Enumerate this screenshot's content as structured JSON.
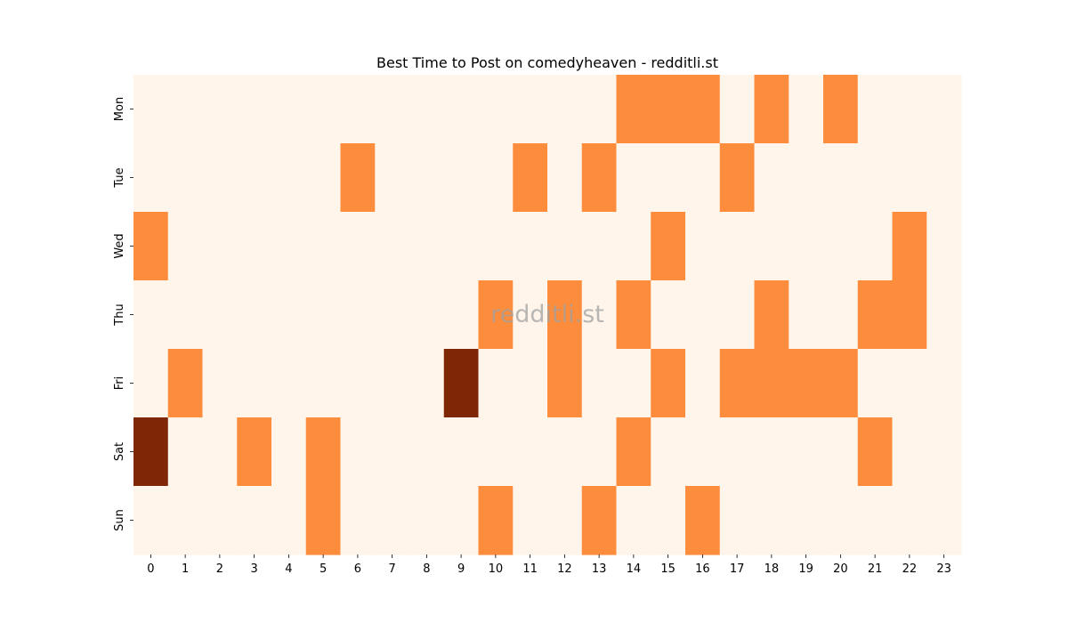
{
  "chart_data": {
    "type": "heatmap",
    "title": "Best Time to Post on comedyheaven - redditli.st",
    "xlabel": "",
    "ylabel": "",
    "x_categories": [
      "0",
      "1",
      "2",
      "3",
      "4",
      "5",
      "6",
      "7",
      "8",
      "9",
      "10",
      "11",
      "12",
      "13",
      "14",
      "15",
      "16",
      "17",
      "18",
      "19",
      "20",
      "21",
      "22",
      "23"
    ],
    "y_categories": [
      "Mon",
      "Tue",
      "Wed",
      "Thu",
      "Fri",
      "Sat",
      "Sun"
    ],
    "values": [
      [
        0,
        0,
        0,
        0,
        0,
        0,
        0,
        0,
        0,
        0,
        0,
        0,
        0,
        0,
        1,
        1,
        1,
        0,
        1,
        0,
        1,
        0,
        0,
        0
      ],
      [
        0,
        0,
        0,
        0,
        0,
        0,
        1,
        0,
        0,
        0,
        0,
        1,
        0,
        1,
        0,
        0,
        0,
        1,
        0,
        0,
        0,
        0,
        0,
        0
      ],
      [
        1,
        0,
        0,
        0,
        0,
        0,
        0,
        0,
        0,
        0,
        0,
        0,
        0,
        0,
        0,
        1,
        0,
        0,
        0,
        0,
        0,
        0,
        1,
        0
      ],
      [
        0,
        0,
        0,
        0,
        0,
        0,
        0,
        0,
        0,
        0,
        1,
        0,
        1,
        0,
        1,
        0,
        0,
        0,
        1,
        0,
        0,
        1,
        1,
        0
      ],
      [
        0,
        1,
        0,
        0,
        0,
        0,
        0,
        0,
        0,
        2,
        0,
        0,
        1,
        0,
        0,
        1,
        0,
        1,
        1,
        1,
        1,
        0,
        0,
        0
      ],
      [
        2,
        0,
        0,
        1,
        0,
        1,
        0,
        0,
        0,
        0,
        0,
        0,
        0,
        0,
        1,
        0,
        0,
        0,
        0,
        0,
        0,
        1,
        0,
        0
      ],
      [
        0,
        0,
        0,
        0,
        0,
        1,
        0,
        0,
        0,
        0,
        1,
        0,
        0,
        1,
        0,
        0,
        1,
        0,
        0,
        0,
        0,
        0,
        0,
        0
      ]
    ],
    "value_range": [
      0,
      2
    ],
    "colormap": {
      "0": "#fff5eb",
      "1": "#fd8d3c",
      "2": "#7f2704"
    },
    "colorbar": false,
    "grid": false,
    "watermark": "redditli.st"
  }
}
